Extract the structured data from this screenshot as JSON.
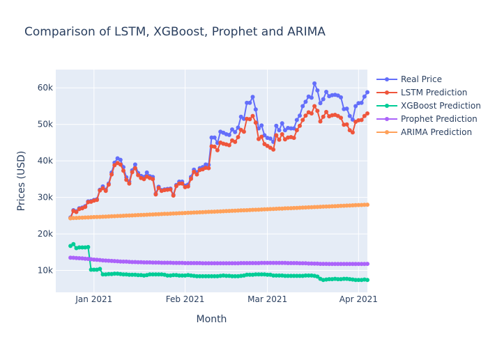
{
  "chart_data": {
    "type": "line",
    "title": "Comparison of LSTM, XGBoost, Prophet and ARIMA",
    "xlabel": "Month",
    "ylabel": "Prices (USD)",
    "x_range": [
      "2020-12-19",
      "2021-04-04"
    ],
    "x_ticks": [
      {
        "date": "2021-01-01",
        "label": "Jan 2021"
      },
      {
        "date": "2021-02-01",
        "label": "Feb 2021"
      },
      {
        "date": "2021-03-01",
        "label": "Mar 2021"
      },
      {
        "date": "2021-04-01",
        "label": "Apr 2021"
      }
    ],
    "ylim": [
      4000,
      65000
    ],
    "y_ticks": [
      {
        "value": 10000,
        "label": "10k"
      },
      {
        "value": 20000,
        "label": "20k"
      },
      {
        "value": 30000,
        "label": "30k"
      },
      {
        "value": 40000,
        "label": "40k"
      },
      {
        "value": 50000,
        "label": "50k"
      },
      {
        "value": 60000,
        "label": "60k"
      }
    ],
    "grid": true,
    "legend_position": "top-right",
    "start_date": "2020-12-24",
    "series": [
      {
        "name": "Real Price",
        "color": "#636efa",
        "values": [
          24500,
          26500,
          26200,
          27000,
          27200,
          27600,
          28900,
          29000,
          29300,
          29500,
          32100,
          33000,
          32100,
          33800,
          36800,
          39500,
          40700,
          40300,
          38300,
          35500,
          34300,
          37400,
          39000,
          36700,
          35900,
          35600,
          36800,
          35800,
          35600,
          31000,
          32900,
          32000,
          32200,
          32300,
          32400,
          30700,
          33400,
          34300,
          34300,
          33200,
          33500,
          35600,
          37600,
          36900,
          38000,
          38300,
          39000,
          38900,
          46400,
          46400,
          44900,
          48000,
          47700,
          47300,
          47100,
          48600,
          47900,
          49100,
          52100,
          51500,
          55900,
          55900,
          57500,
          54100,
          48900,
          49700,
          47000,
          46300,
          46100,
          45200,
          49600,
          48400,
          50300,
          48400,
          49000,
          48900,
          48900,
          51200,
          52400,
          55000,
          56200,
          57600,
          57300,
          61200,
          59300,
          55800,
          56900,
          58900,
          57700,
          58000,
          58100,
          57900,
          57400,
          54200,
          54300,
          52300,
          51300,
          55000,
          55800,
          55900,
          57600,
          58800
        ]
      },
      {
        "name": "LSTM Prediction",
        "color": "#ef553b",
        "values": [
          24300,
          26300,
          26000,
          26800,
          27000,
          27400,
          28700,
          28800,
          29100,
          29300,
          31900,
          32500,
          31800,
          33500,
          36300,
          38800,
          39400,
          39000,
          37300,
          34800,
          33800,
          36900,
          38000,
          36100,
          35300,
          35000,
          35700,
          35300,
          35000,
          30800,
          32600,
          31800,
          32000,
          32100,
          32200,
          30500,
          33100,
          33800,
          33800,
          32800,
          33000,
          35100,
          37000,
          36300,
          37500,
          37700,
          38100,
          38000,
          44000,
          43900,
          42900,
          45000,
          44700,
          44500,
          44300,
          45600,
          45200,
          46500,
          48500,
          48000,
          51500,
          51400,
          52300,
          50500,
          46000,
          46600,
          44600,
          44100,
          43600,
          43100,
          47000,
          45800,
          47300,
          45900,
          46400,
          46500,
          46300,
          48400,
          49600,
          51200,
          52400,
          53300,
          53000,
          55000,
          53700,
          50800,
          52100,
          53400,
          52200,
          52500,
          52600,
          52300,
          51800,
          49900,
          50000,
          48400,
          47800,
          50700,
          51100,
          51200,
          52300,
          53000
        ]
      },
      {
        "name": "XGBoost Prediction",
        "color": "#00cc96",
        "values": [
          16700,
          17200,
          16100,
          16300,
          16300,
          16300,
          16400,
          10200,
          10200,
          10200,
          10400,
          8900,
          8900,
          9000,
          9000,
          9100,
          9100,
          9000,
          8900,
          8900,
          8800,
          8800,
          8800,
          8700,
          8700,
          8600,
          8700,
          8900,
          8900,
          8900,
          8900,
          8900,
          8800,
          8600,
          8600,
          8700,
          8700,
          8600,
          8600,
          8600,
          8700,
          8600,
          8500,
          8400,
          8400,
          8400,
          8400,
          8400,
          8400,
          8400,
          8400,
          8500,
          8600,
          8500,
          8500,
          8400,
          8400,
          8400,
          8500,
          8600,
          8800,
          8800,
          8800,
          8900,
          8900,
          8900,
          8900,
          8800,
          8800,
          8600,
          8600,
          8600,
          8600,
          8500,
          8500,
          8500,
          8500,
          8500,
          8500,
          8500,
          8600,
          8600,
          8600,
          8500,
          8300,
          7700,
          7400,
          7500,
          7600,
          7600,
          7700,
          7600,
          7600,
          7700,
          7700,
          7600,
          7500,
          7400,
          7400,
          7400,
          7500,
          7400
        ]
      },
      {
        "name": "Prophet Prediction",
        "color": "#ab63fa",
        "values": [
          13500,
          13450,
          13400,
          13350,
          13300,
          13200,
          13150,
          13050,
          12950,
          12900,
          12850,
          12750,
          12700,
          12650,
          12600,
          12550,
          12500,
          12450,
          12400,
          12400,
          12350,
          12300,
          12300,
          12250,
          12250,
          12200,
          12200,
          12200,
          12150,
          12150,
          12150,
          12100,
          12100,
          12100,
          12100,
          12050,
          12050,
          12050,
          12050,
          12000,
          12000,
          12000,
          12000,
          12000,
          12000,
          11950,
          11950,
          11950,
          11950,
          11950,
          11950,
          11950,
          11950,
          11950,
          11950,
          11950,
          11950,
          11950,
          12000,
          12000,
          12000,
          12000,
          12000,
          12000,
          12000,
          12050,
          12050,
          12050,
          12050,
          12050,
          12050,
          12050,
          12050,
          12050,
          12000,
          12000,
          12000,
          12000,
          11950,
          11950,
          11950,
          11900,
          11900,
          11850,
          11850,
          11800,
          11800,
          11800,
          11750,
          11750,
          11750,
          11750,
          11750,
          11750,
          11750,
          11750,
          11750,
          11750,
          11750,
          11750,
          11750,
          11800
        ]
      },
      {
        "name": "ARIMA Prediction",
        "color": "#ffa15a",
        "values": [
          24300,
          24340,
          24380,
          24410,
          24450,
          24490,
          24520,
          24560,
          24600,
          24630,
          24670,
          24710,
          24740,
          24780,
          24820,
          24850,
          24890,
          24930,
          24960,
          25000,
          25040,
          25070,
          25110,
          25150,
          25180,
          25220,
          25260,
          25290,
          25330,
          25370,
          25400,
          25440,
          25480,
          25510,
          25550,
          25590,
          25620,
          25660,
          25700,
          25730,
          25770,
          25810,
          25840,
          25880,
          25920,
          25950,
          25990,
          26030,
          26060,
          26100,
          26140,
          26170,
          26210,
          26250,
          26280,
          26320,
          26360,
          26390,
          26430,
          26470,
          26500,
          26540,
          26580,
          26610,
          26650,
          26690,
          26720,
          26760,
          26800,
          26830,
          26870,
          26910,
          26940,
          26980,
          27020,
          27050,
          27090,
          27130,
          27160,
          27200,
          27240,
          27270,
          27310,
          27350,
          27380,
          27420,
          27460,
          27490,
          27530,
          27570,
          27600,
          27640,
          27680,
          27710,
          27750,
          27790,
          27820,
          27860,
          27900,
          27930,
          27970,
          28000
        ]
      }
    ]
  }
}
